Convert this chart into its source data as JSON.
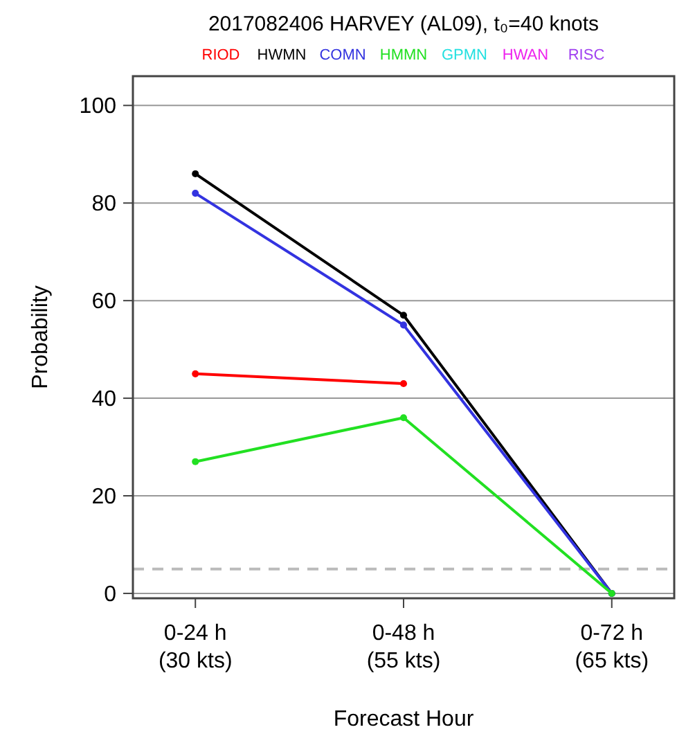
{
  "chart_data": {
    "type": "line",
    "title": "2017082406 HARVEY (AL09), t₀=40 knots",
    "xlabel": "Forecast Hour",
    "ylabel": "Probability",
    "categories": [
      "0-24 h\n(30 kts)",
      "0-48 h\n(55 kts)",
      "0-72 h\n(65 kts)"
    ],
    "series": [
      {
        "name": "RIOD",
        "color": "#ff0000",
        "values": [
          45,
          43,
          null
        ]
      },
      {
        "name": "HWMN",
        "color": "#000000",
        "values": [
          86,
          57,
          0
        ]
      },
      {
        "name": "COMN",
        "color": "#3333e0",
        "values": [
          82,
          55,
          0
        ]
      },
      {
        "name": "HMMN",
        "color": "#22e022",
        "values": [
          27,
          36,
          0
        ]
      },
      {
        "name": "GPMN",
        "color": "#22e0e0",
        "values": [
          null,
          null,
          null
        ]
      },
      {
        "name": "HWAN",
        "color": "#ee22ee",
        "values": [
          null,
          null,
          null
        ]
      },
      {
        "name": "RISC",
        "color": "#a040f0",
        "values": [
          null,
          null,
          null
        ]
      }
    ],
    "ylim": [
      -1,
      106
    ],
    "yticks": [
      0,
      20,
      40,
      60,
      80,
      100
    ],
    "grid": "y",
    "ref_lines": [
      {
        "axis": "y",
        "value": 5,
        "color": "#bbbbbb",
        "line_style": "dashed"
      }
    ],
    "legend": "top",
    "marker": "circle",
    "line_style": "solid"
  }
}
